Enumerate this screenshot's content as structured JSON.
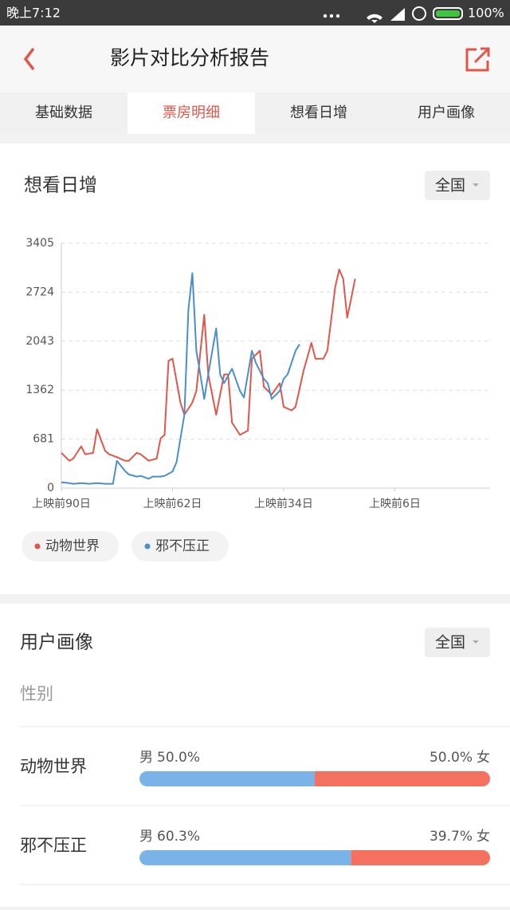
{
  "status_bar": {
    "time": "晚上7:12",
    "battery": "100%"
  },
  "header": {
    "title": "影片对比分析报告"
  },
  "tabs": {
    "items": [
      "基础数据",
      "票房明细",
      "想看日增",
      "用户画像"
    ],
    "active": 1
  },
  "chart_section": {
    "title": "想看日增",
    "region": "全国"
  },
  "chart_data": {
    "type": "line",
    "xlim": [
      -90,
      18
    ],
    "xticks": [
      {
        "value": -90,
        "label": "上映前90日"
      },
      {
        "value": -62,
        "label": "上映前62日"
      },
      {
        "value": -34,
        "label": "上映前34日"
      },
      {
        "value": -6,
        "label": "上映前6日"
      }
    ],
    "ylim": [
      0,
      3405
    ],
    "yticks": [
      0,
      681,
      1362,
      2043,
      2724,
      3405
    ],
    "grid": true,
    "series": [
      {
        "name": "动物世界",
        "color": "#e0574a",
        "x": [
          -90,
          -88,
          -87,
          -85,
          -84,
          -82,
          -81,
          -79,
          -78,
          -76,
          -74,
          -73,
          -71,
          -70,
          -68,
          -66,
          -65,
          -64,
          -63,
          -62,
          -60,
          -59,
          -57,
          -56,
          -54,
          -53,
          -51,
          -49,
          -48,
          -47,
          -45,
          -43,
          -42,
          -40,
          -39,
          -37,
          -35,
          -34,
          -32,
          -31,
          -29,
          -27,
          -26,
          -24,
          -23,
          -21,
          -20,
          -19,
          -18,
          -17,
          -16
        ],
        "values": [
          490,
          380,
          410,
          580,
          470,
          490,
          820,
          520,
          470,
          430,
          380,
          380,
          490,
          470,
          380,
          410,
          690,
          740,
          1770,
          1800,
          1190,
          1020,
          1190,
          1350,
          2410,
          1580,
          1020,
          1580,
          1580,
          910,
          740,
          800,
          1800,
          1910,
          1410,
          1300,
          1460,
          1130,
          1080,
          1130,
          1630,
          2020,
          1800,
          1800,
          1910,
          2800,
          3040,
          2910,
          2370,
          2630,
          2910
        ]
      },
      {
        "name": "邪不压正",
        "color": "#4a8fcc",
        "x": [
          -90,
          -88,
          -87,
          -85,
          -83,
          -81,
          -79,
          -77,
          -76,
          -74,
          -73,
          -71,
          -70,
          -68,
          -67,
          -65,
          -64,
          -62,
          -61,
          -59,
          -58,
          -57,
          -56,
          -55,
          -54,
          -53,
          -51,
          -50,
          -49,
          -47,
          -45,
          -44,
          -42,
          -41,
          -39,
          -38,
          -37,
          -35,
          -34,
          -33,
          -31,
          -30
        ],
        "values": [
          80,
          70,
          60,
          70,
          60,
          70,
          60,
          60,
          380,
          240,
          190,
          160,
          170,
          130,
          160,
          160,
          170,
          230,
          360,
          1020,
          2480,
          2990,
          1910,
          1580,
          1240,
          1580,
          2220,
          1580,
          1460,
          1660,
          1350,
          1260,
          1910,
          1740,
          1520,
          1460,
          1240,
          1350,
          1520,
          1580,
          1910,
          2000
        ]
      }
    ]
  },
  "profile_section": {
    "title": "用户画像",
    "region": "全国",
    "subtitle": "性别"
  },
  "gender": {
    "male_label": "男",
    "female_label": "女",
    "rows": [
      {
        "name": "动物世界",
        "male": 50.0,
        "male_label": "50.0%",
        "female": 50.0,
        "female_label": "50.0%"
      },
      {
        "name": "邪不压正",
        "male": 60.3,
        "male_label": "60.3%",
        "female": 39.7,
        "female_label": "39.7%"
      }
    ]
  }
}
